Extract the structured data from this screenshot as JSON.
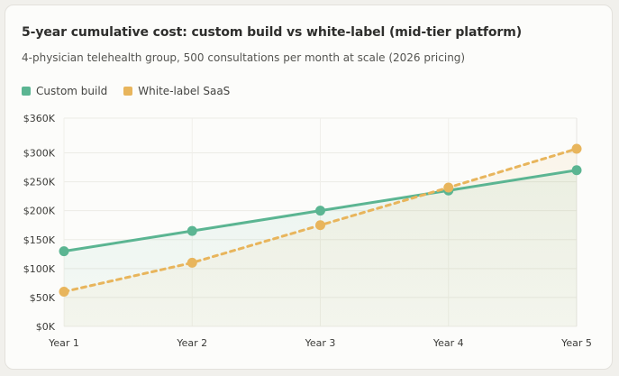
{
  "chart_data": {
    "type": "line",
    "title": "5-year cumulative cost: custom build vs white-label (mid-tier platform)",
    "subtitle": "4-physician telehealth group, 500 consultations per month at scale (2026 pricing)",
    "categories": [
      "Year 1",
      "Year 2",
      "Year 3",
      "Year 4",
      "Year 5"
    ],
    "series": [
      {
        "name": "Custom build",
        "values": [
          130000,
          165000,
          200000,
          235000,
          270000
        ],
        "color": "#5bb592",
        "style": "solid"
      },
      {
        "name": "White-label SaaS",
        "values": [
          60000,
          110000,
          175000,
          240000,
          307000
        ],
        "color": "#e8b55c",
        "style": "dashed"
      }
    ],
    "yticks": [
      0,
      50000,
      100000,
      150000,
      200000,
      250000,
      300000,
      360000
    ],
    "ytick_labels": [
      "$0K",
      "$50K",
      "$100K",
      "$150K",
      "$200K",
      "$250K",
      "$300K",
      "$360K"
    ],
    "ylim": [
      0,
      360000
    ],
    "xlabel": "",
    "ylabel": "",
    "grid": true,
    "legend_position": "top-left",
    "area_fill": true
  }
}
